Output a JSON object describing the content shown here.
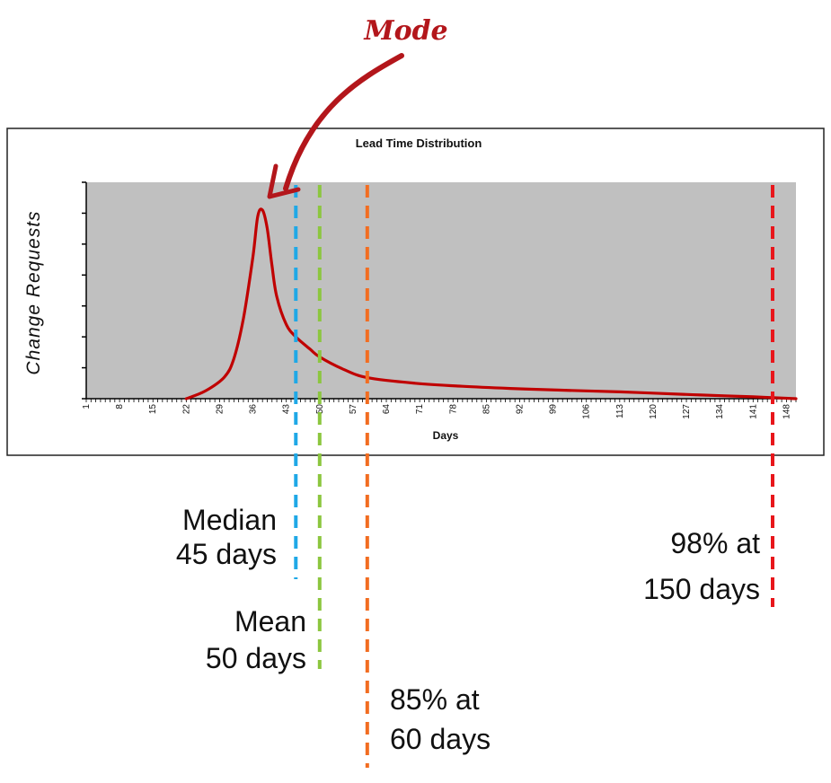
{
  "chart_data": {
    "type": "line",
    "title": "Lead Time Distribution",
    "xlabel": "Days",
    "ylabel": "Change Requests",
    "x_ticks": [
      1,
      8,
      15,
      22,
      29,
      36,
      43,
      50,
      57,
      64,
      71,
      78,
      85,
      92,
      99,
      106,
      113,
      120,
      127,
      134,
      141,
      148
    ],
    "xlim": [
      1,
      150
    ],
    "ylim": [
      0,
      7
    ],
    "grid": false,
    "series": [
      {
        "color": "#c00000",
        "x": [
          22,
          26,
          30,
          32,
          34,
          36,
          37,
          38,
          39,
          40,
          41,
          43,
          45,
          48,
          50,
          55,
          60,
          70,
          80,
          90,
          100,
          113,
          120,
          130,
          141,
          150
        ],
        "values": [
          0.0,
          0.25,
          0.7,
          1.3,
          2.6,
          4.6,
          5.9,
          6.1,
          5.5,
          4.3,
          3.3,
          2.4,
          2.0,
          1.6,
          1.35,
          0.95,
          0.68,
          0.5,
          0.4,
          0.33,
          0.28,
          0.22,
          0.18,
          0.12,
          0.06,
          0.0
        ]
      }
    ],
    "annotations": {
      "mode": {
        "label": "Mode",
        "x": 38,
        "color": "#b3161b"
      },
      "markers": [
        {
          "name": "median",
          "x": 45,
          "color": "#1fa8e6",
          "lines": [
            "Median",
            "45 days"
          ]
        },
        {
          "name": "mean",
          "x": 50,
          "color": "#8cc63f",
          "lines": [
            "Mean",
            "50 days"
          ]
        },
        {
          "name": "p85",
          "x": 60,
          "color": "#f26d21",
          "lines": [
            "85% at",
            "60 days"
          ]
        },
        {
          "name": "p98",
          "x": 150,
          "color": "#e8161b",
          "lines": [
            "98% at",
            "150 days"
          ]
        }
      ]
    }
  },
  "colors": {
    "plot_background": "#c0c0c0",
    "frame": "#000000"
  }
}
